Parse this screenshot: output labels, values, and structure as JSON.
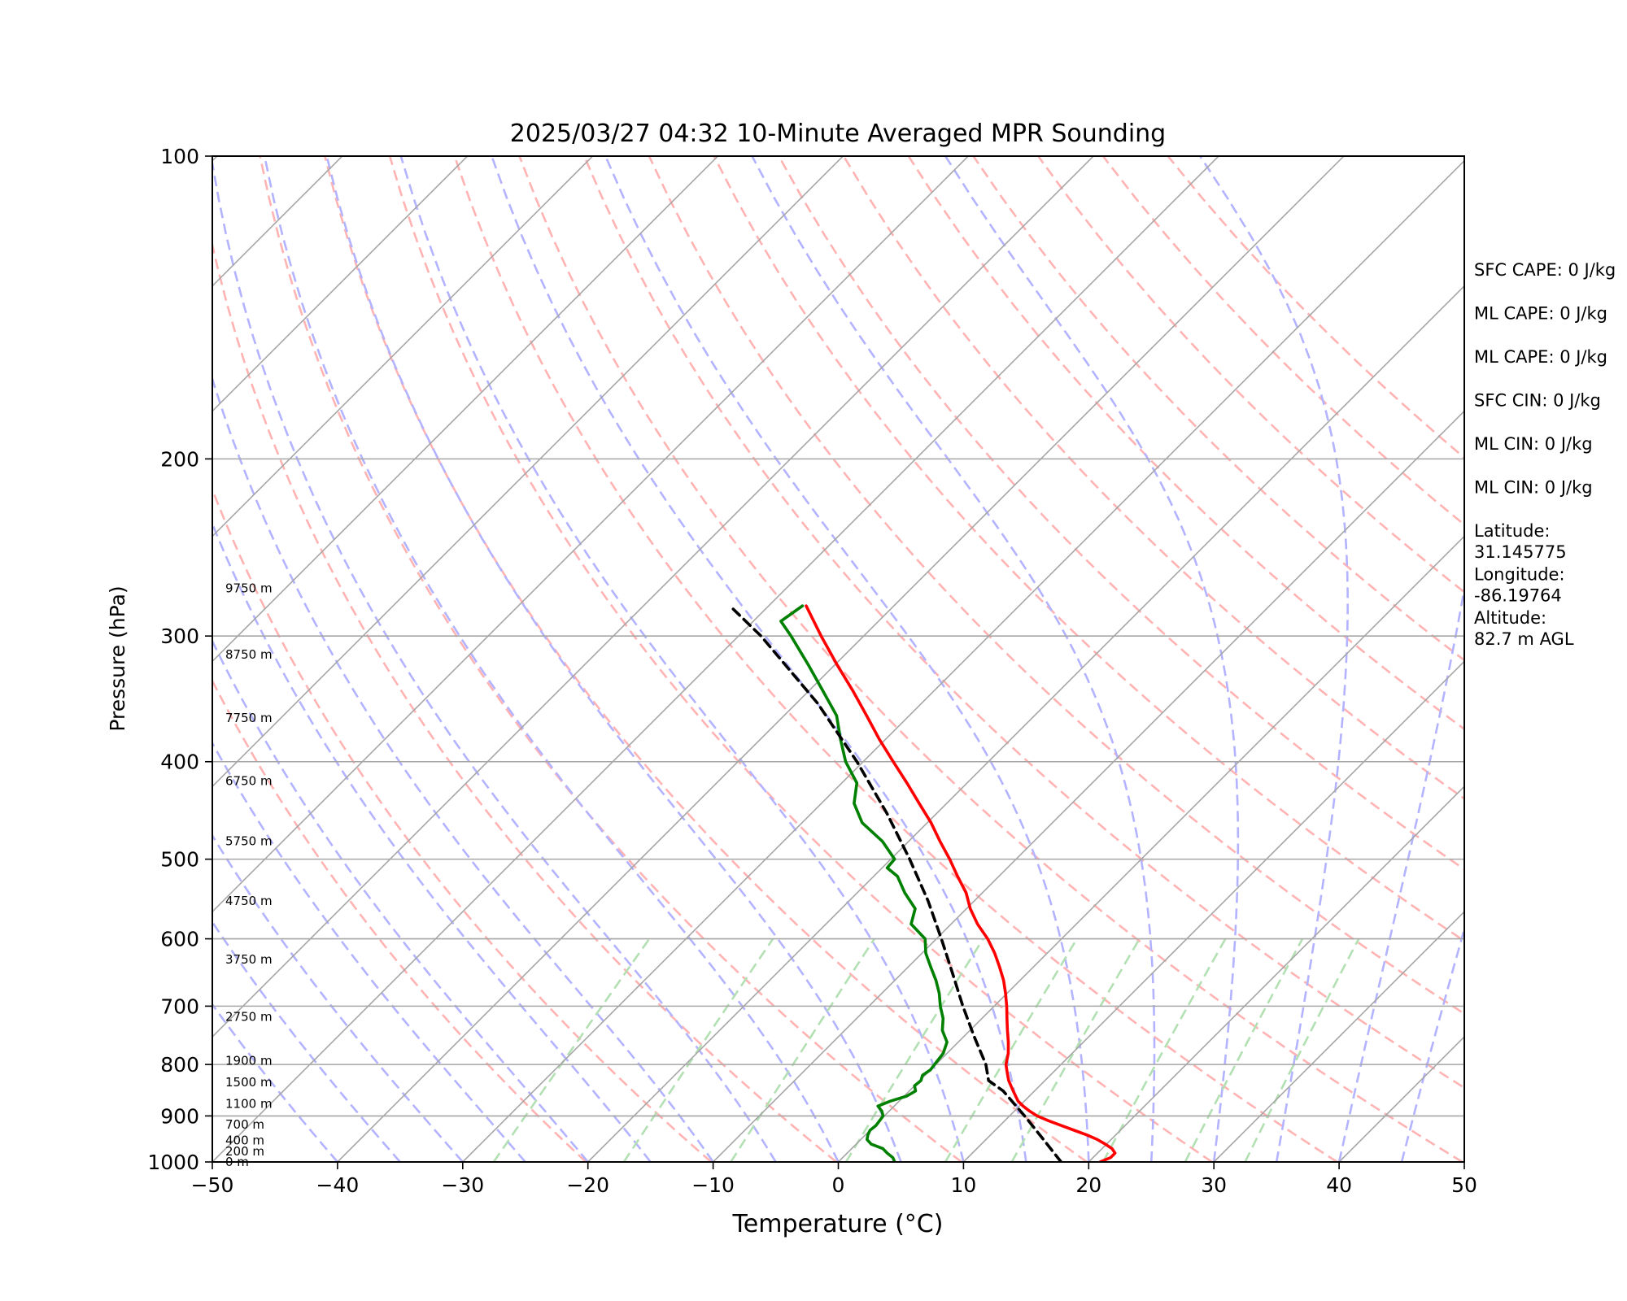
{
  "chart_data": {
    "type": "skew-t",
    "title": "2025/03/27 04:32 10-Minute Averaged MPR Sounding",
    "xlabel": "Temperature (°C)",
    "ylabel": "Pressure (hPa)",
    "xlim": [
      -50,
      50
    ],
    "ylim": [
      1000,
      100
    ],
    "y_scale": "log",
    "x_ticks": [
      -50,
      -40,
      -30,
      -20,
      -10,
      0,
      10,
      20,
      30,
      40,
      50
    ],
    "x_tick_labels": [
      "−50",
      "−40",
      "−30",
      "−20",
      "−10",
      "0",
      "10",
      "20",
      "30",
      "40",
      "50"
    ],
    "y_ticks": [
      100,
      200,
      300,
      400,
      500,
      600,
      700,
      800,
      900,
      1000
    ],
    "y_tick_labels": [
      "100",
      "200",
      "300",
      "400",
      "500",
      "600",
      "700",
      "800",
      "900",
      "1000"
    ],
    "grid": true,
    "skew": 45,
    "colors": {
      "temperature": "#ff0000",
      "dewpoint": "#008000",
      "parcel": "#000000",
      "isotherm": "#a6a6a6",
      "isobar": "#a6a6a6",
      "dry_adiabat": "#ffb3b3",
      "moist_adiabat": "#b3b3ff",
      "mixing_ratio": "#b3e0b3"
    },
    "series": [
      {
        "key": "temperature",
        "pressure": [
          1000,
          990,
          980,
          970,
          960,
          950,
          940,
          930,
          920,
          910,
          900,
          890,
          880,
          870,
          860,
          850,
          840,
          830,
          820,
          810,
          800,
          780,
          760,
          740,
          720,
          700,
          680,
          660,
          640,
          620,
          600,
          580,
          560,
          540,
          520,
          500,
          480,
          460,
          440,
          420,
          400,
          380,
          360,
          340,
          320,
          300,
          280
        ],
        "values": [
          20.9,
          21.4,
          21.4,
          20.8,
          19.9,
          18.9,
          17.7,
          16.3,
          14.9,
          13.5,
          12.2,
          11.2,
          10.3,
          9.5,
          8.9,
          8.3,
          7.7,
          7.1,
          6.6,
          6.1,
          5.6,
          4.9,
          4.0,
          3.0,
          2.0,
          1.0,
          -0.1,
          -1.3,
          -2.7,
          -4.2,
          -5.9,
          -7.9,
          -9.7,
          -11.3,
          -13.3,
          -15.3,
          -17.5,
          -19.7,
          -22.2,
          -24.8,
          -27.6,
          -30.5,
          -33.4,
          -36.5,
          -39.9,
          -43.4,
          -47.0
        ]
      },
      {
        "key": "dewpoint",
        "pressure": [
          1000,
          990,
          980,
          970,
          960,
          950,
          940,
          930,
          920,
          910,
          900,
          890,
          880,
          870,
          860,
          850,
          840,
          830,
          820,
          810,
          800,
          780,
          760,
          740,
          720,
          700,
          680,
          660,
          640,
          620,
          600,
          580,
          560,
          540,
          520,
          510,
          500,
          480,
          460,
          440,
          420,
          400,
          380,
          360,
          340,
          320,
          300,
          290,
          280
        ],
        "values": [
          4.5,
          4.0,
          3.2,
          2.5,
          1.2,
          0.5,
          0.2,
          0.0,
          0.1,
          0.0,
          -0.1,
          -0.6,
          -1.3,
          -0.7,
          0.2,
          0.5,
          0.0,
          0.1,
          -0.2,
          0.0,
          -0.1,
          -0.3,
          -0.9,
          -2.2,
          -3.1,
          -4.3,
          -5.4,
          -6.7,
          -8.2,
          -9.7,
          -10.9,
          -13.2,
          -14.1,
          -16.2,
          -18.1,
          -19.6,
          -19.7,
          -22.1,
          -25.2,
          -27.4,
          -28.8,
          -31.4,
          -33.6,
          -35.8,
          -38.9,
          -42.2,
          -45.8,
          -47.8,
          -47.3
        ]
      },
      {
        "key": "parcel",
        "pressure": [
          1000,
          950,
          900,
          850,
          830,
          800,
          750,
          700,
          650,
          600,
          550,
          500,
          450,
          400,
          350,
          300,
          280
        ],
        "values": [
          17.8,
          14.6,
          11.2,
          7.5,
          5.5,
          4.0,
          0.8,
          -2.5,
          -5.9,
          -9.6,
          -13.7,
          -18.5,
          -24.0,
          -30.5,
          -38.3,
          -48.2,
          -53.1
        ]
      }
    ],
    "height_labels": [
      {
        "pressure": 1000,
        "label": "0 m"
      },
      {
        "pressure": 976,
        "label": "200 m"
      },
      {
        "pressure": 952,
        "label": "400 m"
      },
      {
        "pressure": 918,
        "label": "700 m"
      },
      {
        "pressure": 875,
        "label": "1100 m"
      },
      {
        "pressure": 833,
        "label": "1500 m"
      },
      {
        "pressure": 793,
        "label": "1900 m"
      },
      {
        "pressure": 717,
        "label": "2750 m"
      },
      {
        "pressure": 629,
        "label": "3750 m"
      },
      {
        "pressure": 550,
        "label": "4750 m"
      },
      {
        "pressure": 480,
        "label": "5750 m"
      },
      {
        "pressure": 418,
        "label": "6750 m"
      },
      {
        "pressure": 362,
        "label": "7750 m"
      },
      {
        "pressure": 313,
        "label": "8750 m"
      },
      {
        "pressure": 269,
        "label": "9750 m"
      }
    ],
    "dry_adiabat_thetas_k": [
      253,
      263,
      273,
      283,
      293,
      303,
      313,
      323,
      333,
      343,
      353,
      363,
      373,
      383,
      393,
      403,
      413,
      423
    ],
    "moist_adiabat_surface_c": [
      -40,
      -35,
      -30,
      -25,
      -20,
      -15,
      -10,
      -5,
      0,
      5,
      10,
      15,
      20,
      25,
      30,
      35,
      40,
      45
    ],
    "mixing_ratios_gkg": [
      0.4,
      1.0,
      2.0,
      4.0,
      7.0,
      10.0,
      16.0,
      24.0,
      32.0
    ],
    "annotations": [
      {
        "lines": [
          "SFC CAPE: 0 J/kg"
        ]
      },
      {
        "lines": [
          "ML CAPE: 0 J/kg"
        ]
      },
      {
        "lines": [
          "ML CAPE: 0 J/kg"
        ]
      },
      {
        "lines": [
          "SFC CIN: 0 J/kg"
        ]
      },
      {
        "lines": [
          "ML CIN: 0 J/kg"
        ]
      },
      {
        "lines": [
          "ML CIN: 0 J/kg"
        ]
      },
      {
        "lines": [
          "Latitude:",
          "31.145775"
        ]
      },
      {
        "lines": [
          "Longitude:",
          "-86.19764"
        ]
      },
      {
        "lines": [
          "Altitude:",
          "82.7 m AGL"
        ]
      }
    ]
  }
}
